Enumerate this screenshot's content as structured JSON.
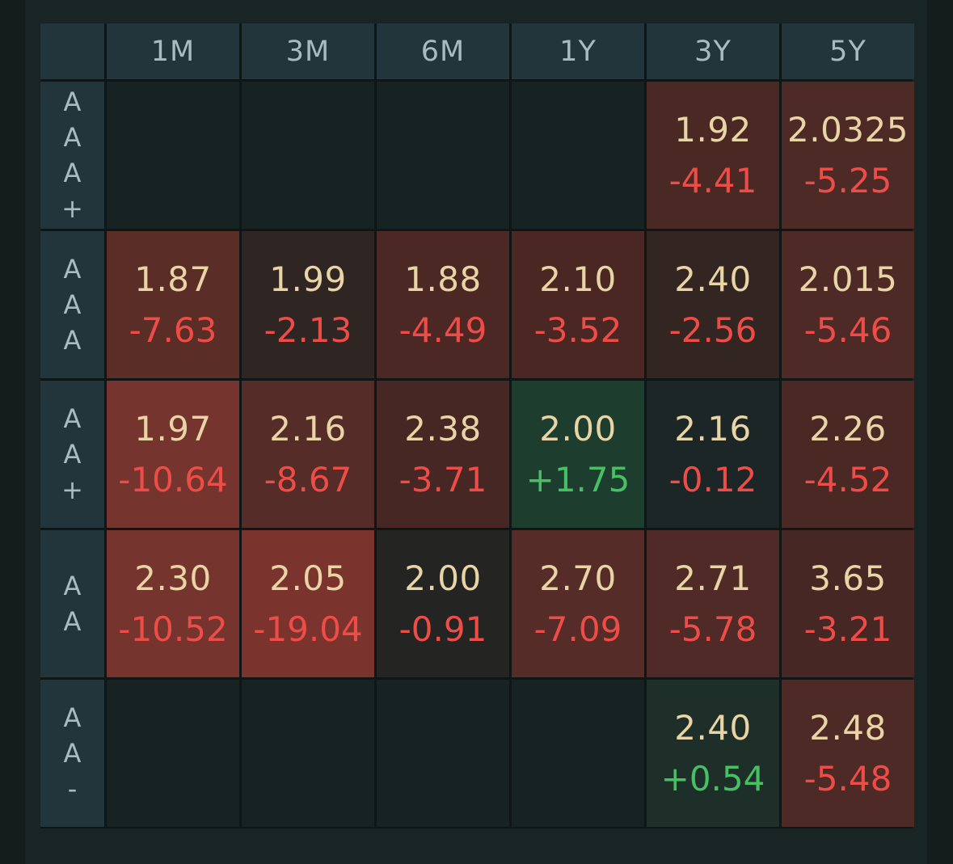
{
  "columns": [
    "1M",
    "3M",
    "6M",
    "1Y",
    "3Y",
    "5Y"
  ],
  "rows": [
    {
      "label": "AAA+",
      "cells": [
        null,
        null,
        null,
        null,
        {
          "value": "1.92",
          "change": "-4.41",
          "dir": "neg",
          "bg": "#4a2823"
        },
        {
          "value": "2.0325",
          "change": "-5.25",
          "dir": "neg",
          "bg": "#4e2a26"
        }
      ]
    },
    {
      "label": "AAA",
      "cells": [
        {
          "value": "1.87",
          "change": "-7.63",
          "dir": "neg",
          "bg": "#5a2d27"
        },
        {
          "value": "1.99",
          "change": "-2.13",
          "dir": "neg",
          "bg": "#2f2522"
        },
        {
          "value": "1.88",
          "change": "-4.49",
          "dir": "neg",
          "bg": "#4c2824"
        },
        {
          "value": "2.10",
          "change": "-3.52",
          "dir": "neg",
          "bg": "#4a2723"
        },
        {
          "value": "2.40",
          "change": "-2.56",
          "dir": "neg",
          "bg": "#332522"
        },
        {
          "value": "2.015",
          "change": "-5.46",
          "dir": "neg",
          "bg": "#4e2a26"
        }
      ]
    },
    {
      "label": "AA+",
      "cells": [
        {
          "value": "1.97",
          "change": "-10.64",
          "dir": "neg",
          "bg": "#75342d"
        },
        {
          "value": "2.16",
          "change": "-8.67",
          "dir": "neg",
          "bg": "#552c27"
        },
        {
          "value": "2.38",
          "change": "-3.71",
          "dir": "neg",
          "bg": "#462724"
        },
        {
          "value": "2.00",
          "change": "+1.75",
          "dir": "pos",
          "bg": "#1d3d2e"
        },
        {
          "value": "2.16",
          "change": "-0.12",
          "dir": "neg",
          "bg": "#1c2626"
        },
        {
          "value": "2.26",
          "change": "-4.52",
          "dir": "neg",
          "bg": "#4a2824"
        }
      ]
    },
    {
      "label": "AA",
      "cells": [
        {
          "value": "2.30",
          "change": "-10.52",
          "dir": "neg",
          "bg": "#75342d"
        },
        {
          "value": "2.05",
          "change": "-19.04",
          "dir": "neg",
          "bg": "#7a342d"
        },
        {
          "value": "2.00",
          "change": "-0.91",
          "dir": "neg",
          "bg": "#242523"
        },
        {
          "value": "2.70",
          "change": "-7.09",
          "dir": "neg",
          "bg": "#552c27"
        },
        {
          "value": "2.71",
          "change": "-5.78",
          "dir": "neg",
          "bg": "#4f2a26"
        },
        {
          "value": "3.65",
          "change": "-3.21",
          "dir": "neg",
          "bg": "#472724"
        }
      ]
    },
    {
      "label": "AA-",
      "cells": [
        null,
        null,
        null,
        null,
        {
          "value": "2.40",
          "change": "+0.54",
          "dir": "pos",
          "bg": "#1d2f28"
        },
        {
          "value": "2.48",
          "change": "-5.48",
          "dir": "neg",
          "bg": "#4e2a26"
        }
      ]
    }
  ]
}
